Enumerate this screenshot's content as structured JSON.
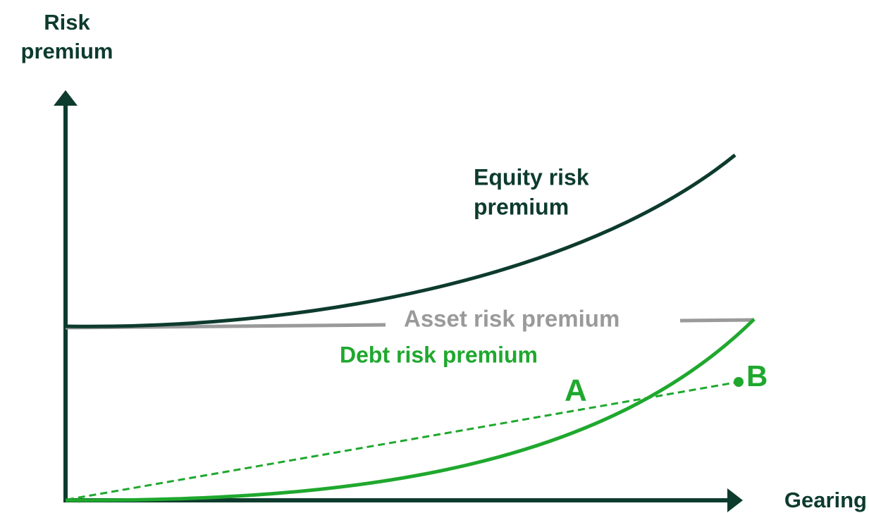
{
  "y_axis": {
    "label": [
      "Risk",
      "premium"
    ]
  },
  "x_axis": {
    "label": "Gearing"
  },
  "curves": {
    "equity": {
      "label": [
        "Equity risk",
        "premium"
      ]
    },
    "asset": {
      "label": "Asset risk premium"
    },
    "debt": {
      "label": "Debt risk premium"
    }
  },
  "points": {
    "a": {
      "label": "A"
    },
    "b": {
      "label": "B"
    }
  }
}
